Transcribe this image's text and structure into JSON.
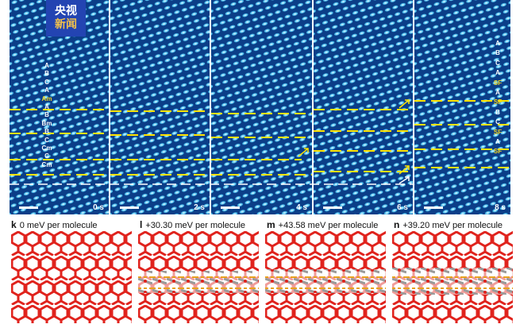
{
  "logo": {
    "line1": "央视",
    "line2": "新闻"
  },
  "tem_panels": [
    {
      "time": "0 s"
    },
    {
      "time": "2 s"
    },
    {
      "time": "4 s"
    },
    {
      "time": "6 s"
    },
    {
      "time": "8 s"
    }
  ],
  "layers_left": [
    "A",
    "B",
    "C",
    "A",
    "Am",
    "A",
    "B",
    "Bm",
    "B",
    "C",
    "Cm",
    "C",
    "Cm"
  ],
  "layers_left_highlight": "Am",
  "layers_right": [
    "A",
    "B",
    "C",
    "A",
    "SF",
    "A",
    "SF",
    "B",
    "C",
    "SF",
    "A",
    "SF"
  ],
  "molecules": [
    {
      "letter": "k",
      "label": "0 meV per molecule"
    },
    {
      "letter": "l",
      "label": "+30.30 meV per molecule"
    },
    {
      "letter": "m",
      "label": "+43.58 meV per molecule"
    },
    {
      "letter": "n",
      "label": "+39.20 meV per molecule"
    }
  ],
  "colors": {
    "lattice_bg": "#0b3e88",
    "dot": "#4fc3f0",
    "dash": "#ffe300",
    "oxygen": "#e0231d"
  }
}
